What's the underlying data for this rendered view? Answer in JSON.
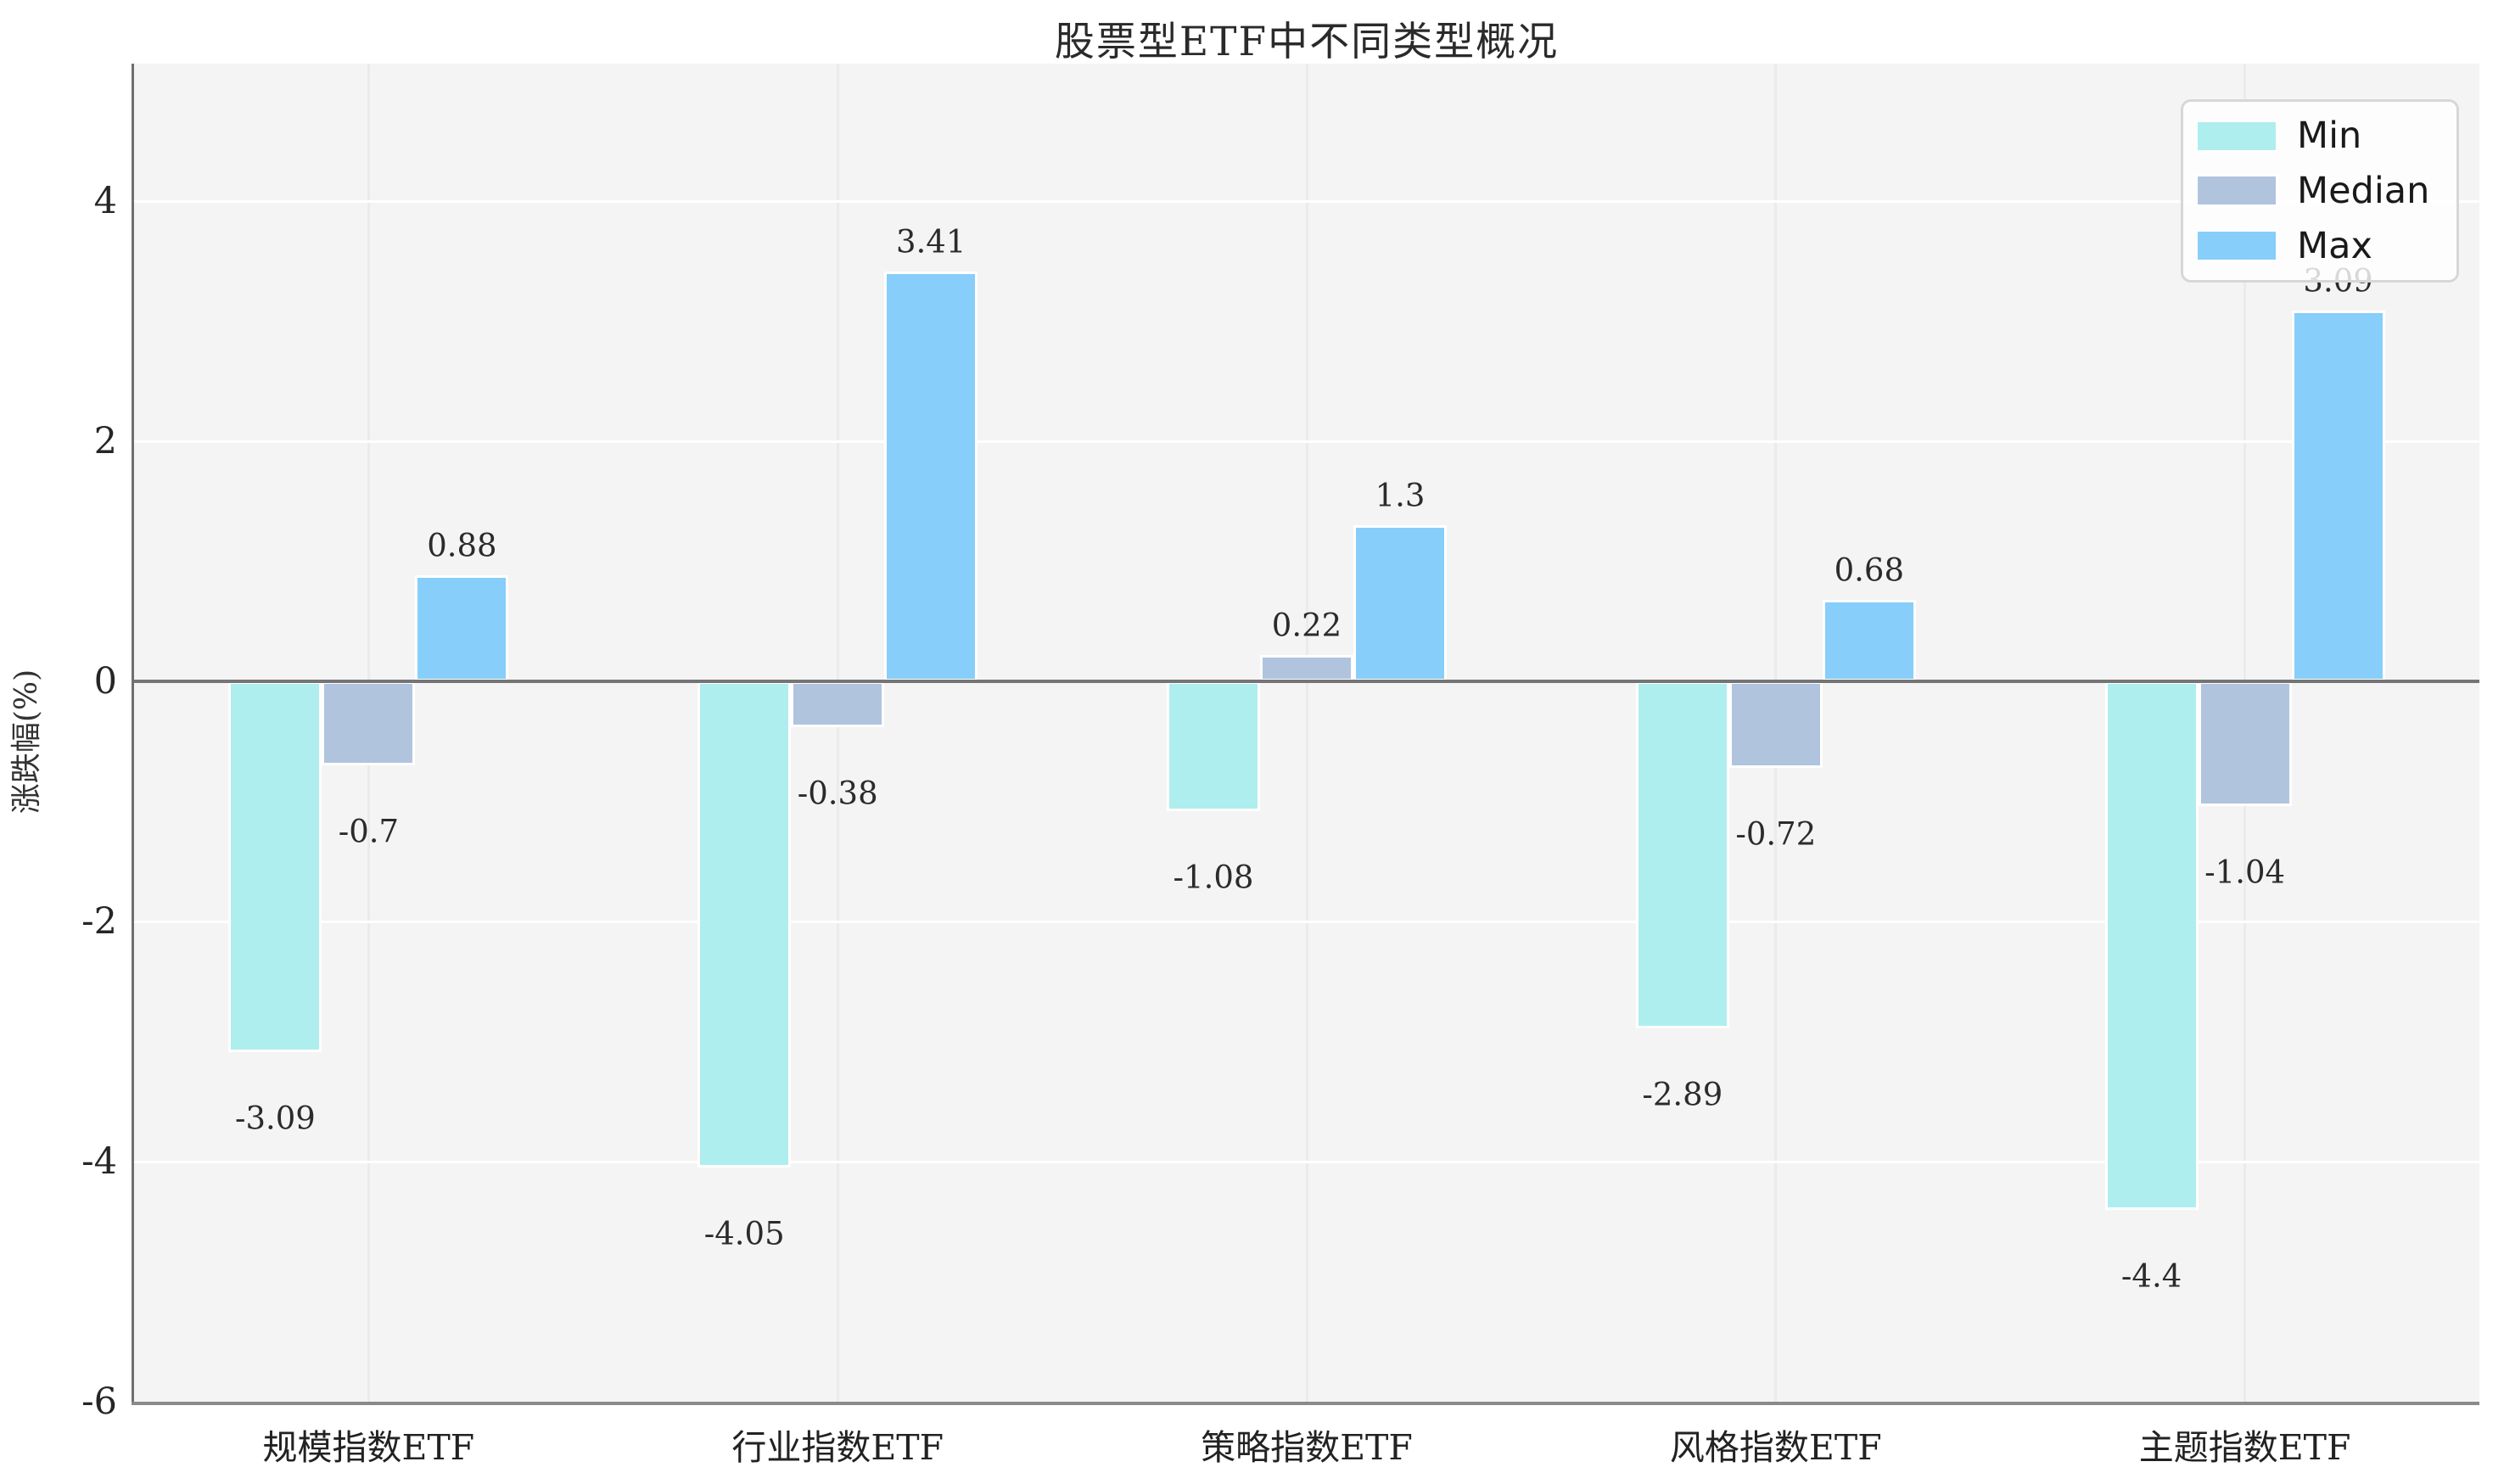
{
  "title": "股票型ETF中不同类型概况",
  "y_axis_label": "涨跌幅(%)",
  "legend": {
    "items": [
      {
        "label": "Min",
        "color": "#afeeee"
      },
      {
        "label": "Median",
        "color": "#b0c4de"
      },
      {
        "label": "Max",
        "color": "#87cefa"
      }
    ]
  },
  "chart_data": {
    "type": "bar",
    "title": "股票型ETF中不同类型概况",
    "xlabel": "",
    "ylabel": "涨跌幅(%)",
    "categories": [
      "规模指数ETF",
      "行业指数ETF",
      "策略指数ETF",
      "风格指数ETF",
      "主题指数ETF"
    ],
    "series": [
      {
        "name": "Min",
        "color": "#afeeee",
        "values": [
          -3.09,
          -4.05,
          -1.08,
          -2.89,
          -4.4
        ],
        "labels": [
          "-3.09",
          "-4.05",
          "-1.08",
          "-2.89",
          "-4.4"
        ]
      },
      {
        "name": "Median",
        "color": "#b0c4de",
        "values": [
          -0.7,
          -0.38,
          0.22,
          -0.72,
          -1.04
        ],
        "labels": [
          "-0.7",
          "-0.38",
          "0.22",
          "-0.72",
          "-1.04"
        ]
      },
      {
        "name": "Max",
        "color": "#87cefa",
        "values": [
          0.88,
          3.41,
          1.3,
          0.68,
          3.09
        ],
        "labels": [
          "0.88",
          "3.41",
          "1.3",
          "0.68",
          "3.09"
        ]
      }
    ],
    "yticks": [
      4,
      2,
      0,
      -2,
      -4,
      -6
    ],
    "ylim": [
      -6.0,
      5.14
    ],
    "grid": true,
    "bar_value_labels": true,
    "legend_position": "upper right",
    "plot_background": "#f4f4f5",
    "grid_color": "#ffffff",
    "zero_line_color": "#757575"
  }
}
